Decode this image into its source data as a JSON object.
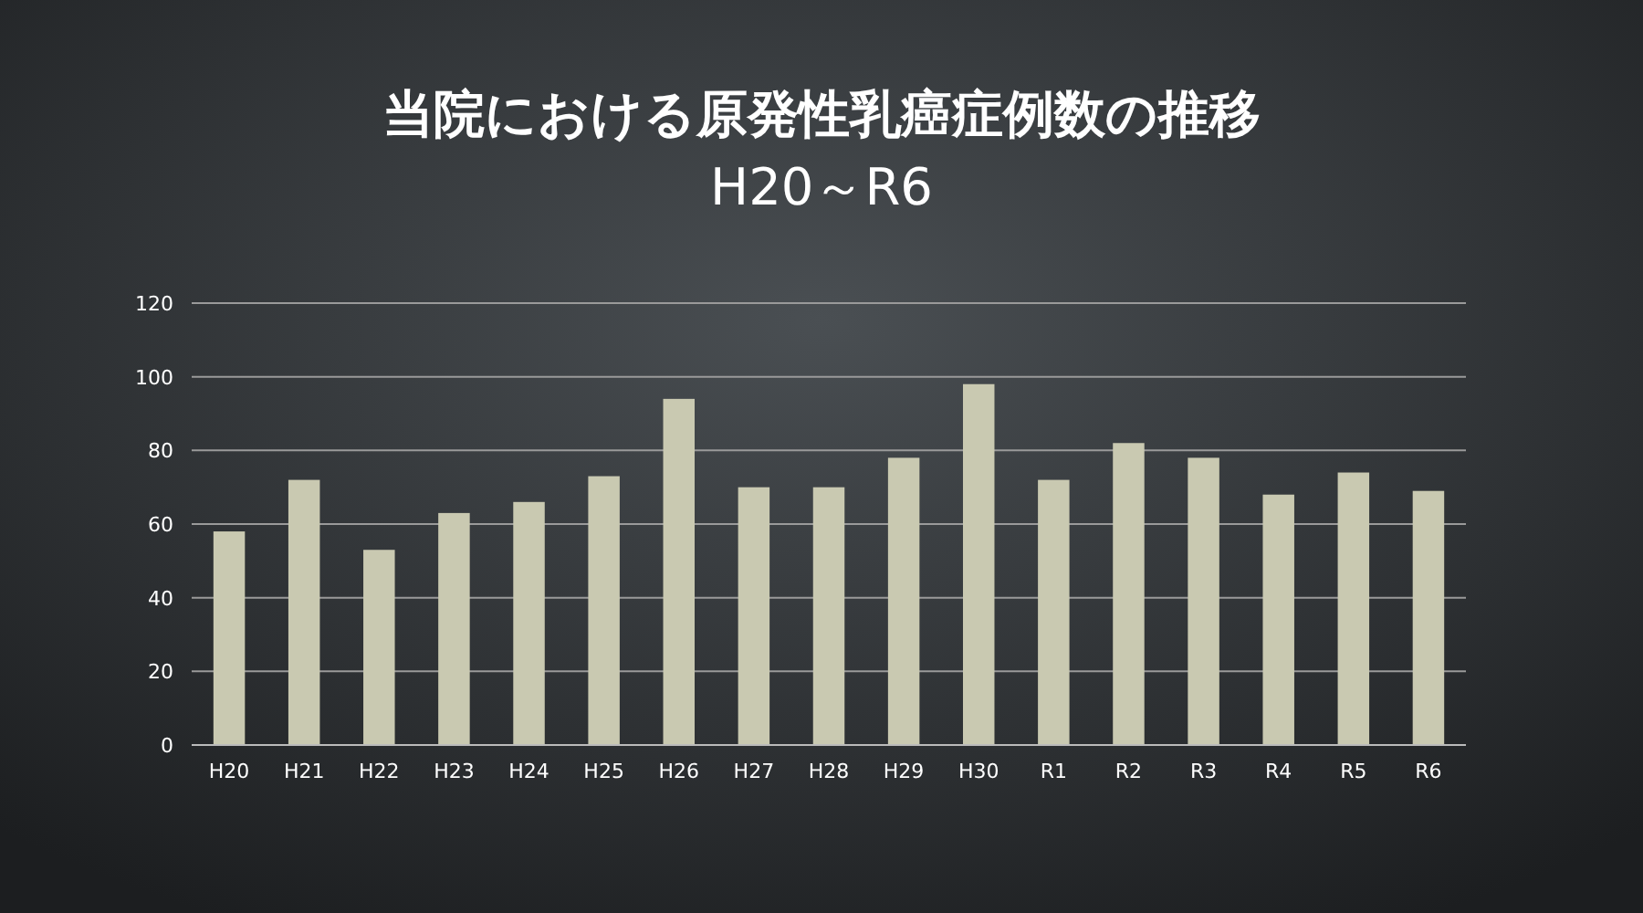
{
  "chart_data": {
    "type": "bar",
    "title": "当院における原発性乳癌症例数の推移",
    "subtitle": "H20～R6",
    "categories": [
      "H20",
      "H21",
      "H22",
      "H23",
      "H24",
      "H25",
      "H26",
      "H27",
      "H28",
      "H29",
      "H30",
      "R1",
      "R2",
      "R3",
      "R4",
      "R5",
      "R6"
    ],
    "values": [
      58,
      72,
      53,
      63,
      66,
      73,
      94,
      70,
      70,
      78,
      98,
      72,
      82,
      78,
      68,
      74,
      69
    ],
    "color": "#c9c9b1",
    "ylim": [
      0,
      120
    ],
    "yticks": [
      0,
      20,
      40,
      60,
      80,
      100,
      120
    ],
    "grid": "y"
  }
}
